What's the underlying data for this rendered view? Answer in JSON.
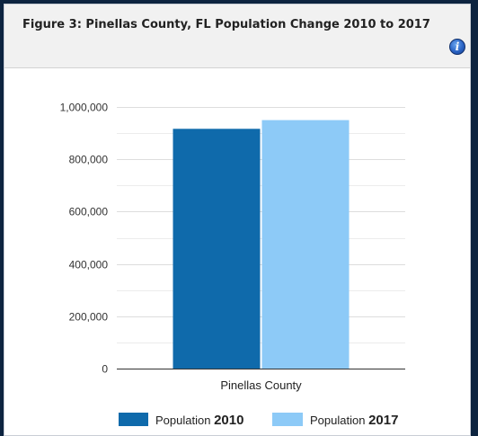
{
  "header": {
    "title": "Figure 3: Pinellas County, FL Population Change 2010 to 2017",
    "info_icon": "info-icon"
  },
  "colors": {
    "series_2010": "#0f6aab",
    "series_2017": "#8dcaf7",
    "axis": "#333333",
    "grid": "#dddddd"
  },
  "chart_data": {
    "type": "bar",
    "title": "Figure 3: Pinellas County, FL Population Change 2010 to 2017",
    "categories": [
      "Pinellas County"
    ],
    "series": [
      {
        "name": "Population 2010",
        "label_prefix": "Population",
        "label_year": "2010",
        "values": [
          916500
        ]
      },
      {
        "name": "Population 2017",
        "label_prefix": "Population",
        "label_year": "2017",
        "values": [
          949800
        ]
      }
    ],
    "ylim": [
      0,
      1000000
    ],
    "yticks": [
      {
        "value": 0,
        "label": "0"
      },
      {
        "value": 200000,
        "label": "200,000"
      },
      {
        "value": 400000,
        "label": "400,000"
      },
      {
        "value": 600000,
        "label": "600,000"
      },
      {
        "value": 800000,
        "label": "800,000"
      },
      {
        "value": 1000000,
        "label": "1,000,000"
      }
    ],
    "grid": true,
    "legend_position": "bottom"
  }
}
